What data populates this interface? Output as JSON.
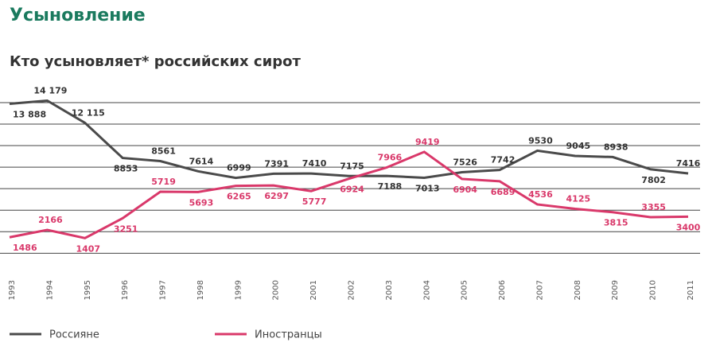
{
  "chart_data": {
    "type": "line",
    "title": "Усыновление",
    "subtitle": "Кто усыновляет* российских сирот",
    "categories": [
      "1993",
      "1994",
      "1995",
      "1996",
      "1997",
      "1998",
      "1999",
      "2000",
      "2001",
      "2002",
      "2003",
      "2004",
      "2005",
      "2006",
      "2007",
      "2008",
      "2009",
      "2010",
      "2011"
    ],
    "series": [
      {
        "name": "Россияне",
        "color": "#4a4a4a",
        "values": [
          13888,
          14179,
          12115,
          8853,
          8561,
          7614,
          6999,
          7391,
          7410,
          7175,
          7188,
          7013,
          7526,
          7742,
          9530,
          9045,
          8938,
          7802,
          7416
        ],
        "value_labels": [
          "13 888",
          "14 179",
          "12 115",
          "8853",
          "8561",
          "7614",
          "6999",
          "7391",
          "7410",
          "7175",
          "7188",
          "7013",
          "7526",
          "7742",
          "9530",
          "9045",
          "8938",
          "7802",
          "7416"
        ]
      },
      {
        "name": "Иностранцы",
        "color": "#d9386a",
        "values": [
          1486,
          2166,
          1407,
          3251,
          5719,
          5693,
          6265,
          6297,
          5777,
          6924,
          7966,
          9419,
          6904,
          6689,
          4536,
          4125,
          3815,
          3355,
          3400
        ],
        "value_labels": [
          "1486",
          "2166",
          "1407",
          "3251",
          "5719",
          "5693",
          "6265",
          "6297",
          "5777",
          "6924",
          "7966",
          "9419",
          "6904",
          "6689",
          "4536",
          "4125",
          "3815",
          "3355",
          "3400"
        ]
      }
    ],
    "ylim": [
      -1600,
      15400
    ],
    "yticks": [
      0,
      2000,
      4000,
      6000,
      8000,
      10000,
      12000,
      14000
    ],
    "grid": true
  }
}
